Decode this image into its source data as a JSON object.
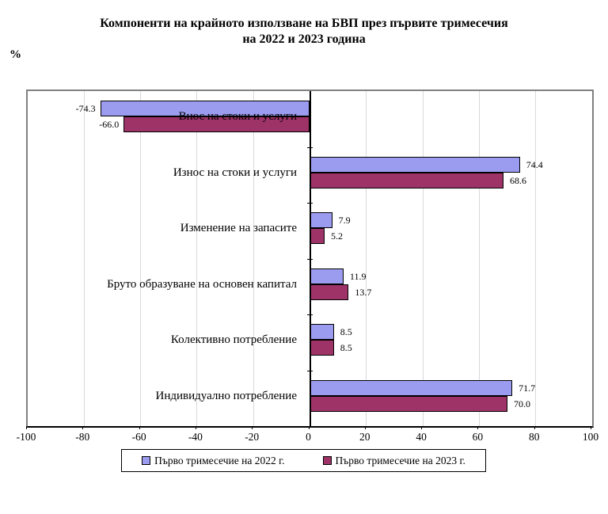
{
  "title": {
    "line1": "Компоненти на крайното използване на БВП през първите тримесечия",
    "line2": "на 2022 и 2023 година"
  },
  "axis_unit_label": "%",
  "chart_data": {
    "type": "bar",
    "orientation": "horizontal",
    "title": "Компоненти на крайното използване на БВП през първите тримесечия на 2022 и 2023 година",
    "ylabel": "",
    "xlabel": "%",
    "categories": [
      "Внос на стоки и услуги",
      "Износ на стоки и услуги",
      "Изменение на запасите",
      "Бруто образуване на основен капитал",
      "Колективно потребление",
      "Индивидуално потребление"
    ],
    "series": [
      {
        "name": "Първо тримесечие на 2022 г.",
        "color": "#9b9bef",
        "values": [
          -74.3,
          74.4,
          7.9,
          11.9,
          8.5,
          71.7
        ]
      },
      {
        "name": "Първо тримесечие на 2023 г.",
        "color": "#9d3367",
        "values": [
          -66.0,
          68.6,
          5.2,
          13.7,
          8.5,
          70.0
        ]
      }
    ],
    "xlim": [
      -100,
      100
    ],
    "xticks": [
      -100,
      -80,
      -60,
      -40,
      -20,
      0,
      20,
      40,
      60,
      80,
      100
    ],
    "grid": true,
    "legend_position": "bottom",
    "value_label_decimals": 1
  },
  "colors": {
    "gridline": "#d9d9d9",
    "plot_border": "#808080",
    "axis": "#000000"
  }
}
